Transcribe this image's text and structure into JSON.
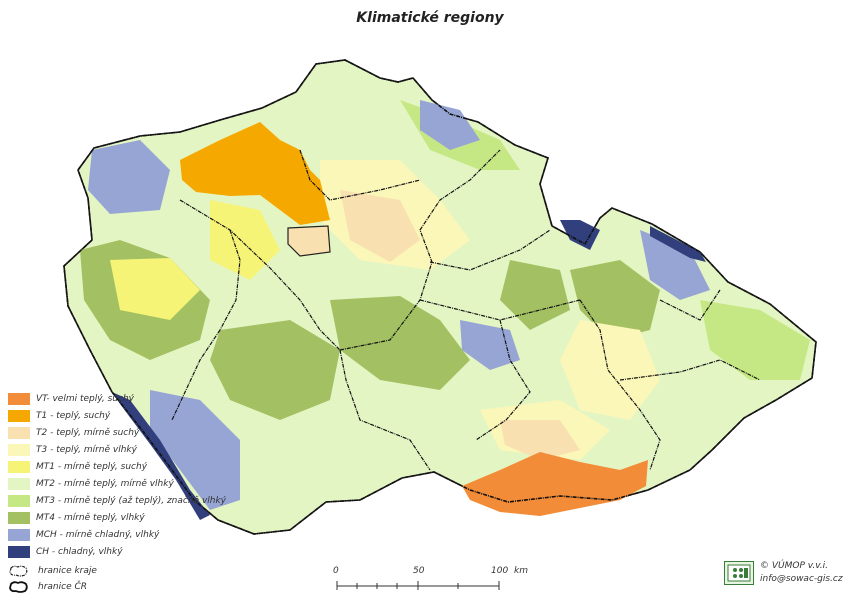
{
  "title": "Klimatické regiony",
  "legend": [
    {
      "label": "VT- velmi teplý, suchý",
      "color": "#f28c38"
    },
    {
      "label": "T1 - teplý, suchý",
      "color": "#f5a800"
    },
    {
      "label": "T2 - teplý, mírně suchý",
      "color": "#f8e0b0"
    },
    {
      "label": "T3 - teplý, mírně vlhký",
      "color": "#fbf7b8"
    },
    {
      "label": "MT1 - mírně teplý, suchý",
      "color": "#f6f476"
    },
    {
      "label": "MT2 - mírně teplý, mírně vlhký",
      "color": "#e4f5c4"
    },
    {
      "label": "MT3 - mírně teplý (až teplý), značně vlhký",
      "color": "#c6e884"
    },
    {
      "label": "MT4 - mírně teplý, vlhký",
      "color": "#a3c162"
    },
    {
      "label": "MCH - mírně chladný, vlhký",
      "color": "#97a5d4"
    },
    {
      "label": "CH - chladný, vlhký",
      "color": "#313f7c"
    }
  ],
  "boundaries": [
    {
      "label": "hranice kraje",
      "icon": "region-boundary-icon"
    },
    {
      "label": "hranice ČR",
      "icon": "country-boundary-icon"
    }
  ],
  "scale": {
    "ticks": [
      "0",
      "50",
      "100"
    ],
    "unit": "km"
  },
  "credit": {
    "line1": "© VÚMOP v.v.i.",
    "line2": "info@sowac-gis.cz"
  }
}
